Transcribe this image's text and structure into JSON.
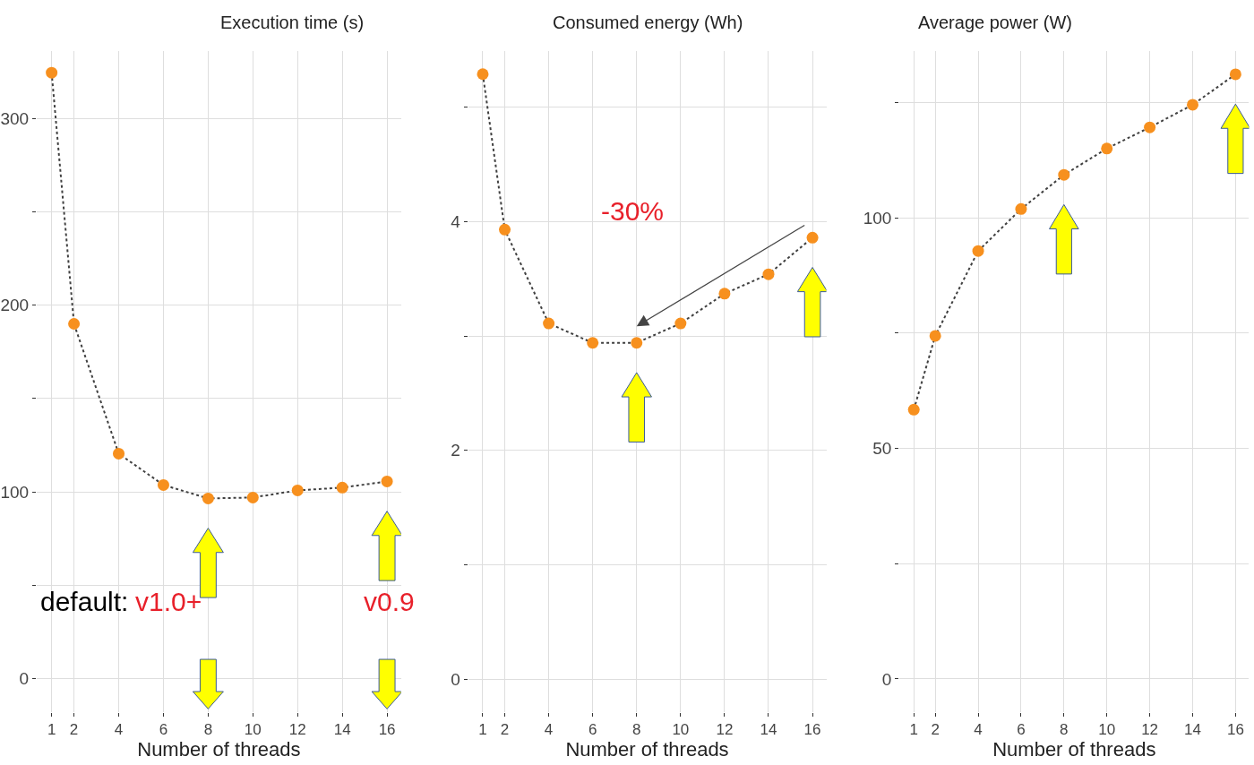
{
  "chart_data": [
    {
      "type": "line",
      "title": "Execution time (s)",
      "xlabel": "Number of threads",
      "x": [
        1,
        2,
        4,
        6,
        8,
        10,
        12,
        14,
        16
      ],
      "xlim": [
        0.33,
        16.63
      ],
      "xticks": [
        1,
        2,
        4,
        6,
        8,
        10,
        12,
        14,
        16
      ],
      "ylim": [
        -18,
        336
      ],
      "yticks": [
        0,
        {
          "value": 50,
          "label": null
        },
        100,
        {
          "value": 150,
          "label": null
        },
        200,
        {
          "value": 250,
          "label": null
        },
        300
      ],
      "grid": true,
      "marker": "circle",
      "line_style": "dotted",
      "series": [
        {
          "color": "#f7901e",
          "values": [
            324.5,
            190,
            120.5,
            103.7,
            96.5,
            97,
            100.8,
            102.3,
            105.6
          ]
        }
      ],
      "annotations": [
        "default:",
        "v1.0+",
        "v0.9"
      ]
    },
    {
      "type": "line",
      "title": "Consumed energy (Wh)",
      "xlabel": "Number of threads",
      "x": [
        1,
        2,
        4,
        6,
        8,
        10,
        12,
        14,
        16
      ],
      "xlim": [
        0.33,
        16.63
      ],
      "xticks": [
        1,
        2,
        4,
        6,
        8,
        10,
        12,
        14,
        16
      ],
      "ylim": [
        -0.29,
        5.49
      ],
      "yticks": [
        0,
        {
          "value": 1,
          "label": null
        },
        2,
        {
          "value": 3,
          "label": null
        },
        4,
        {
          "value": 5,
          "label": null
        }
      ],
      "grid": true,
      "marker": "circle",
      "line_style": "dotted",
      "series": [
        {
          "color": "#f7901e",
          "values": [
            5.29,
            3.93,
            3.11,
            2.94,
            2.94,
            3.11,
            3.37,
            3.54,
            3.86
          ]
        }
      ],
      "annotations": [
        "-30%"
      ]
    },
    {
      "type": "line",
      "title": "Average power (W)",
      "xlabel": "Number of threads",
      "x": [
        1,
        2,
        4,
        6,
        8,
        10,
        12,
        14,
        16
      ],
      "xlim": [
        0.33,
        16.63
      ],
      "xticks": [
        1,
        2,
        4,
        6,
        8,
        10,
        12,
        14,
        16
      ],
      "ylim": [
        -7.2,
        136.1
      ],
      "yticks": [
        0,
        {
          "value": 25,
          "label": null
        },
        50,
        {
          "value": 75,
          "label": null
        },
        100,
        {
          "value": 125,
          "label": null
        }
      ],
      "grid": true,
      "marker": "circle",
      "line_style": "dotted",
      "series": [
        {
          "color": "#f7901e",
          "values": [
            58.4,
            74.4,
            92.8,
            101.9,
            109.3,
            115,
            119.6,
            124.5,
            131.1
          ]
        }
      ]
    }
  ]
}
